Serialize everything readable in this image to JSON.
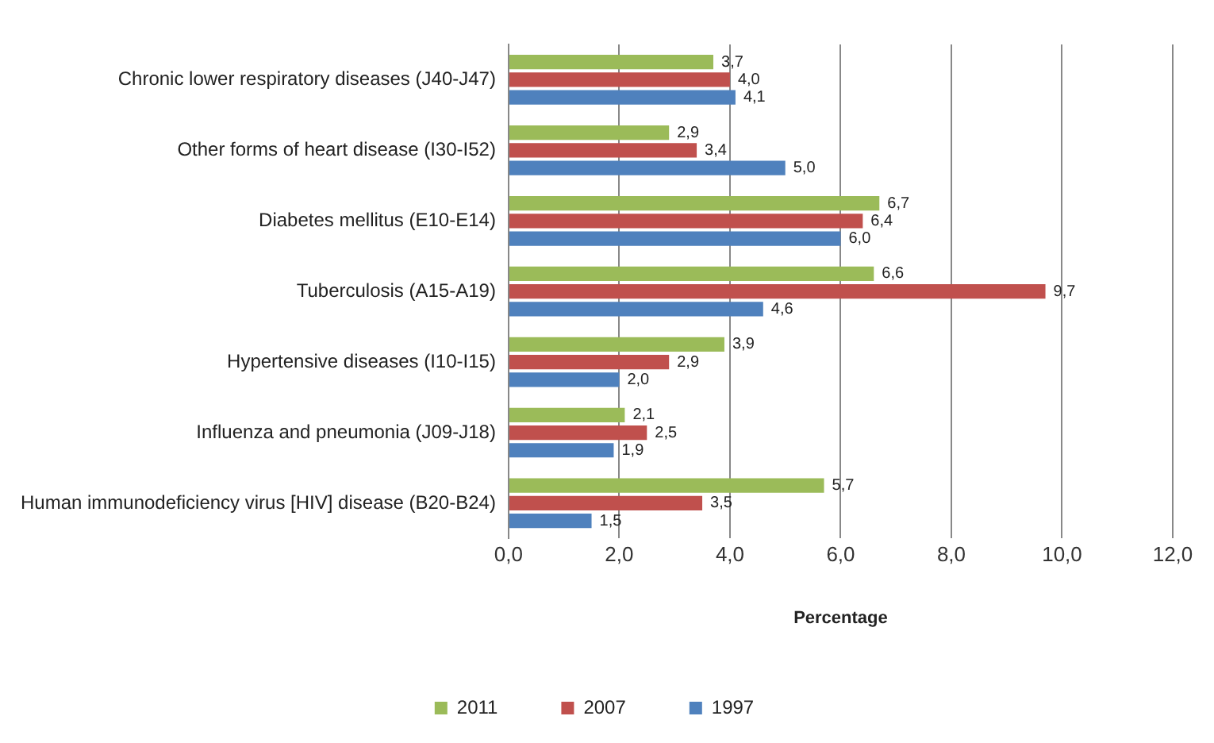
{
  "chart_data": {
    "type": "bar",
    "orientation": "horizontal",
    "xlabel": "Percentage",
    "categories": [
      "Chronic lower respiratory diseases (J40-J47)",
      "Other forms of heart disease (I30-I52)",
      "Diabetes mellitus (E10-E14)",
      "Tuberculosis (A15-A19)",
      "Hypertensive diseases (I10-I15)",
      "Influenza and pneumonia (J09-J18)",
      "Human immunodeficiency virus [HIV] disease (B20-B24)"
    ],
    "series": [
      {
        "name": "2011",
        "color": "#9bbb59",
        "values": [
          3.7,
          2.9,
          6.7,
          6.6,
          3.9,
          2.1,
          5.7
        ],
        "value_labels": [
          "3,7",
          "2,9",
          "6,7",
          "6,6",
          "3,9",
          "2,1",
          "5,7"
        ]
      },
      {
        "name": "2007",
        "color": "#c0504d",
        "values": [
          4.0,
          3.4,
          6.4,
          9.7,
          2.9,
          2.5,
          3.5
        ],
        "value_labels": [
          "4,0",
          "3,4",
          "6,4",
          "9,7",
          "2,9",
          "2,5",
          "3,5"
        ]
      },
      {
        "name": "1997",
        "color": "#4f81bd",
        "values": [
          4.1,
          5.0,
          6.0,
          4.6,
          2.0,
          1.9,
          1.5
        ],
        "value_labels": [
          "4,1",
          "5,0",
          "6,0",
          "4,6",
          "2,0",
          "1,9",
          "1,5"
        ]
      }
    ],
    "xlim": [
      0,
      12
    ],
    "xticks": [
      {
        "value": 0,
        "label": "0,0"
      },
      {
        "value": 2,
        "label": "2,0"
      },
      {
        "value": 4,
        "label": "4,0"
      },
      {
        "value": 6,
        "label": "6,0"
      },
      {
        "value": 8,
        "label": "8,0"
      },
      {
        "value": 10,
        "label": "10,0"
      },
      {
        "value": 12,
        "label": "12,0"
      }
    ],
    "grid": "x",
    "legend": "bottom"
  }
}
